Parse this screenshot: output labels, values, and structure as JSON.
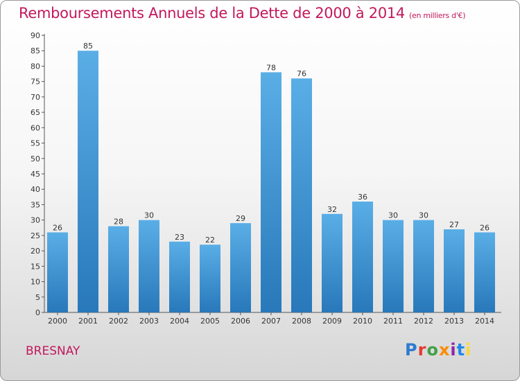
{
  "title": "Remboursements Annuels de la Dette de 2000 à 2014",
  "title_unit": "(en milliers d'€)",
  "commune": "BRESNAY",
  "logo_letters": [
    "P",
    "r",
    "o",
    "x",
    "i",
    "t",
    "i"
  ],
  "colors": {
    "bar_top": "#5aaee6",
    "bar_bottom": "#2878ba",
    "title": "#c2185b"
  },
  "chart_data": {
    "type": "bar",
    "categories": [
      "2000",
      "2001",
      "2002",
      "2003",
      "2004",
      "2005",
      "2006",
      "2007",
      "2008",
      "2009",
      "2010",
      "2011",
      "2012",
      "2013",
      "2014"
    ],
    "values": [
      26,
      85,
      28,
      30,
      23,
      22,
      29,
      78,
      76,
      32,
      36,
      30,
      30,
      27,
      26
    ],
    "data_labels": [
      "26",
      "85",
      "28",
      "30",
      "23",
      "22",
      "29",
      "78",
      "76",
      "32",
      "36",
      "30",
      "30",
      "27",
      "26"
    ],
    "ylim": [
      0,
      90
    ],
    "yticks": [
      0,
      5,
      10,
      15,
      20,
      25,
      30,
      35,
      40,
      45,
      50,
      55,
      60,
      65,
      70,
      75,
      80,
      85,
      90
    ],
    "ytick_labels": [
      "0",
      "5",
      "10",
      "15",
      "20",
      "25",
      "30",
      "35",
      "40",
      "45",
      "50",
      "55",
      "60",
      "65",
      "70",
      "75",
      "80",
      "85",
      "90"
    ],
    "grid": false,
    "legend": "none"
  }
}
